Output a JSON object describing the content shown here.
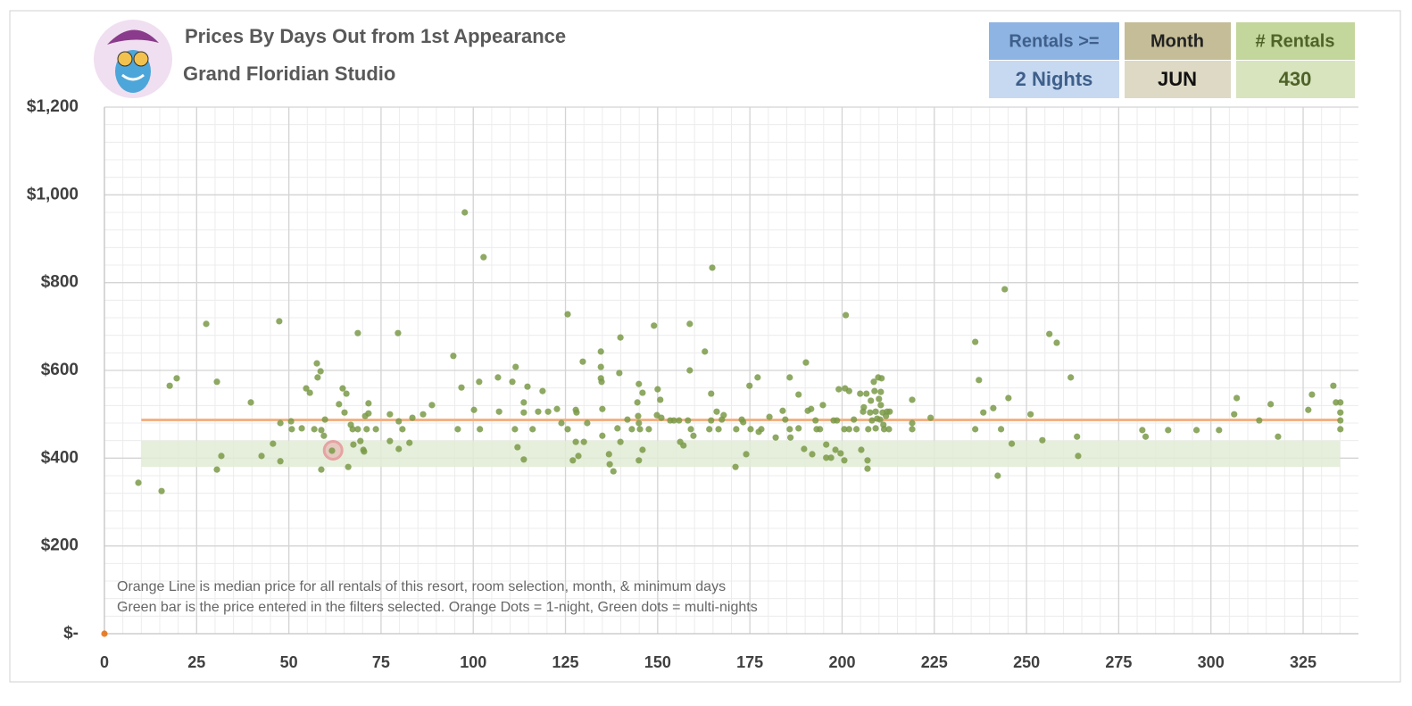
{
  "header": {
    "title": "Prices By Days Out from 1st Appearance",
    "subtitle": "Grand Floridian Studio",
    "filters": [
      {
        "label": "Rentals >=",
        "value": "2 Nights"
      },
      {
        "label": "Month",
        "value": "JUN"
      },
      {
        "label": "# Rentals",
        "value": "430"
      }
    ]
  },
  "chart_data": {
    "type": "scatter",
    "annotations": [
      "Orange Line is median price for all rentals of this resort, room selection, month, & minimum days",
      "Green bar is the price entered in the filters selected. Orange Dots = 1-night, Green dots = multi-nights"
    ],
    "xlim": [
      0,
      340
    ],
    "ylim": [
      0,
      1200
    ],
    "xticks": [
      0,
      25,
      50,
      75,
      100,
      125,
      150,
      175,
      200,
      225,
      250,
      275,
      300,
      325
    ],
    "yticks": [
      {
        "value": 0,
        "label": "$-"
      },
      {
        "value": 200,
        "label": "$200"
      },
      {
        "value": 400,
        "label": "$400"
      },
      {
        "value": 600,
        "label": "$600"
      },
      {
        "value": 800,
        "label": "$800"
      },
      {
        "value": 1000,
        "label": "$1,000"
      },
      {
        "value": 1200,
        "label": "$1,200"
      }
    ],
    "grid": true,
    "minor_grid": 5,
    "reference_line": {
      "y": 487,
      "x": [
        10,
        335
      ],
      "color": "#f4b183"
    },
    "band": {
      "y": [
        380,
        440
      ],
      "x": [
        10,
        335
      ],
      "color": "#e2ecd5"
    },
    "highlight": {
      "x": 62,
      "y": 418,
      "color": "#e6a3a3"
    },
    "series": [
      {
        "color": "#7a9a48",
        "x": [
          9.2,
          15.5,
          17.7,
          19.6,
          27.6,
          30.5,
          30.5,
          31.7,
          39.7,
          42.6,
          45.7,
          47.4,
          47.7,
          47.7,
          50.6,
          50.8,
          53.5,
          54.7,
          55.7,
          56.9,
          57.6,
          57.8,
          58.6,
          58.8,
          58.8,
          59.8,
          59.5,
          61.7,
          63.6,
          64.6,
          65.1,
          65.6,
          66.1,
          66.8,
          67.5,
          67.3,
          68.7,
          68.7,
          69.4,
          70.2,
          70.4,
          70.7,
          71.6,
          71.6,
          71.1,
          73.6,
          77.4,
          77.4,
          79.6,
          79.8,
          79.8,
          80.8,
          82.7,
          83.5,
          86.4,
          88.8,
          94.6,
          95.8,
          96.8,
          97.7,
          100.2,
          101.6,
          101.8,
          102.8,
          106.7,
          107,
          110.6,
          111.5,
          111.3,
          112,
          113.7,
          113.7,
          113.7,
          114.7,
          116.1,
          117.6,
          118.8,
          120.3,
          122.7,
          123.9,
          125.6,
          125.6,
          127,
          127.8,
          127.8,
          128,
          128.5,
          129.7,
          130,
          130.9,
          134.6,
          134.6,
          134.6,
          134.8,
          135,
          135,
          136.8,
          137,
          138,
          139.1,
          139.6,
          139.9,
          139.9,
          141.8,
          143,
          144.5,
          144.7,
          144.9,
          144.9,
          144.9,
          145.2,
          145.9,
          145.9,
          147.6,
          149,
          149.8,
          150,
          150.7,
          151,
          153.4,
          154.4,
          155.8,
          156.1,
          157,
          158.2,
          158.7,
          158.7,
          159,
          159.7,
          162.8,
          164,
          164.5,
          164.5,
          164.8,
          166,
          166.5,
          167.4,
          167.9,
          171.1,
          171.3,
          172.8,
          173.2,
          174,
          174.9,
          175.2,
          177.1,
          177.4,
          178.1,
          180.3,
          182,
          183.9,
          184.6,
          185.8,
          185.8,
          186,
          188.2,
          188.2,
          189.7,
          190.2,
          190.7,
          191.6,
          191.9,
          192.8,
          193.1,
          194,
          194.8,
          195.7,
          195.7,
          197,
          197.7,
          198.2,
          198.6,
          199.1,
          199.6,
          200.6,
          200.6,
          201,
          200.8,
          201.9,
          201.9,
          203.2,
          203.9,
          204.9,
          205.2,
          205.7,
          205.9,
          206.6,
          206.9,
          206.9,
          207.1,
          207.6,
          207.8,
          208.1,
          208.6,
          208.8,
          209.1,
          209.1,
          209.5,
          209.8,
          210,
          210.3,
          210.7,
          210.5,
          210.5,
          211,
          211.2,
          211.4,
          211.9,
          212.2,
          212.7,
          212.9,
          219,
          219,
          219,
          224,
          236.1,
          236.1,
          237.1,
          238.3,
          241,
          242.2,
          243.1,
          244.1,
          245.1,
          246,
          251.1,
          254.3,
          256.2,
          258.2,
          262,
          263.7,
          264,
          281.4,
          282.3,
          288.4,
          296.1,
          302.2,
          306.3,
          307,
          313.1,
          316.2,
          318.2,
          326.4,
          327.4,
          333.2,
          333.9,
          335.1,
          335.1,
          335.1,
          335.1
        ],
        "y": [
          344,
          325,
          565,
          582,
          706,
          574,
          374,
          405,
          527,
          405,
          433,
          712,
          480,
          393,
          484,
          466,
          468,
          559,
          549,
          466,
          616,
          584,
          598,
          464,
          374,
          488,
          451,
          417,
          523,
          559,
          504,
          547,
          380,
          476,
          431,
          466,
          685,
          466,
          439,
          419,
          415,
          496,
          502,
          525,
          466,
          466,
          500,
          439,
          685,
          484,
          421,
          466,
          435,
          492,
          500,
          521,
          633,
          466,
          561,
          960,
          510,
          574,
          466,
          858,
          584,
          506,
          574,
          608,
          466,
          425,
          527,
          504,
          397,
          563,
          466,
          506,
          553,
          506,
          512,
          480,
          728,
          466,
          395,
          510,
          437,
          504,
          405,
          620,
          437,
          480,
          582,
          608,
          643,
          574,
          512,
          451,
          409,
          386,
          370,
          468,
          594,
          675,
          437,
          488,
          466,
          527,
          496,
          569,
          395,
          480,
          466,
          419,
          549,
          466,
          702,
          498,
          557,
          533,
          492,
          486,
          486,
          486,
          437,
          429,
          486,
          706,
          600,
          466,
          451,
          643,
          466,
          486,
          547,
          834,
          506,
          466,
          488,
          498,
          380,
          466,
          488,
          482,
          409,
          565,
          466,
          584,
          460,
          466,
          494,
          447,
          508,
          488,
          584,
          466,
          447,
          545,
          468,
          421,
          618,
          508,
          512,
          409,
          486,
          466,
          466,
          521,
          431,
          401,
          401,
          486,
          419,
          486,
          557,
          411,
          395,
          466,
          726,
          559,
          553,
          466,
          488,
          466,
          547,
          419,
          506,
          516,
          547,
          376,
          395,
          466,
          504,
          531,
          486,
          574,
          553,
          506,
          468,
          490,
          584,
          535,
          488,
          582,
          551,
          521,
          504,
          476,
          466,
          496,
          506,
          466,
          506,
          533,
          480,
          466,
          492,
          665,
          466,
          578,
          504,
          514,
          360,
          466,
          785,
          537,
          433,
          500,
          441,
          683,
          663,
          584,
          449,
          405,
          464,
          449,
          464,
          464,
          464,
          500,
          537,
          486,
          523,
          449,
          510,
          545,
          565,
          527,
          527,
          504,
          486,
          466
        ]
      },
      {
        "color": "#e46c0a",
        "x": [
          0
        ],
        "y": [
          0
        ]
      }
    ]
  }
}
